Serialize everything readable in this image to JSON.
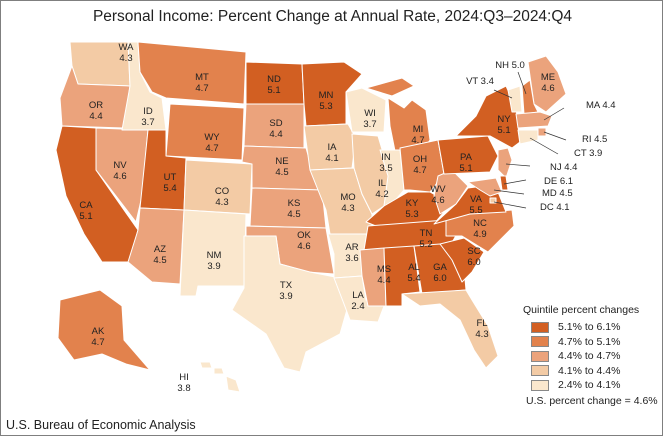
{
  "title": "Personal Income: Percent Change at Annual Rate, 2024:Q3–2024:Q4",
  "source": "U.S. Bureau of Economic Analysis",
  "legend": {
    "title": "Quintile percent changes",
    "items": [
      {
        "label": "5.1% to 6.1%",
        "color": "#d25f22"
      },
      {
        "label": "4.7% to 5.1%",
        "color": "#e2824d"
      },
      {
        "label": "4.4% to 4.7%",
        "color": "#eba37c"
      },
      {
        "label": "4.1% to 4.4%",
        "color": "#f3cba5"
      },
      {
        "label": "2.4% to 4.1%",
        "color": "#fae7cd"
      }
    ],
    "us_change": "U.S. percent change = 4.6%"
  },
  "states": [
    {
      "code": "WA",
      "value": "4.3"
    },
    {
      "code": "OR",
      "value": "4.4"
    },
    {
      "code": "CA",
      "value": "5.1"
    },
    {
      "code": "NV",
      "value": "4.6"
    },
    {
      "code": "ID",
      "value": "3.7"
    },
    {
      "code": "MT",
      "value": "4.7"
    },
    {
      "code": "WY",
      "value": "4.7"
    },
    {
      "code": "UT",
      "value": "5.4"
    },
    {
      "code": "AZ",
      "value": "4.5"
    },
    {
      "code": "CO",
      "value": "4.3"
    },
    {
      "code": "NM",
      "value": "3.9"
    },
    {
      "code": "ND",
      "value": "5.1"
    },
    {
      "code": "SD",
      "value": "4.4"
    },
    {
      "code": "NE",
      "value": "4.5"
    },
    {
      "code": "KS",
      "value": "4.5"
    },
    {
      "code": "OK",
      "value": "4.6"
    },
    {
      "code": "TX",
      "value": "3.9"
    },
    {
      "code": "MN",
      "value": "5.3"
    },
    {
      "code": "IA",
      "value": "4.1"
    },
    {
      "code": "MO",
      "value": "4.3"
    },
    {
      "code": "AR",
      "value": "3.6"
    },
    {
      "code": "LA",
      "value": "2.4"
    },
    {
      "code": "WI",
      "value": "3.7"
    },
    {
      "code": "IL",
      "value": "4.2"
    },
    {
      "code": "MI",
      "value": "4.7"
    },
    {
      "code": "IN",
      "value": "3.5"
    },
    {
      "code": "OH",
      "value": "4.7"
    },
    {
      "code": "KY",
      "value": "5.3"
    },
    {
      "code": "TN",
      "value": "5.2"
    },
    {
      "code": "MS",
      "value": "4.4"
    },
    {
      "code": "AL",
      "value": "5.4"
    },
    {
      "code": "GA",
      "value": "6.0"
    },
    {
      "code": "FL",
      "value": "4.3"
    },
    {
      "code": "SC",
      "value": "6.0"
    },
    {
      "code": "NC",
      "value": "4.9"
    },
    {
      "code": "VA",
      "value": "5.5"
    },
    {
      "code": "WV",
      "value": "4.6"
    },
    {
      "code": "PA",
      "value": "5.1"
    },
    {
      "code": "NY",
      "value": "5.1"
    },
    {
      "code": "ME",
      "value": "4.6"
    },
    {
      "code": "VT",
      "value": "3.4"
    },
    {
      "code": "NH",
      "value": "5.0"
    },
    {
      "code": "MA",
      "value": "4.4"
    },
    {
      "code": "RI",
      "value": "4.5"
    },
    {
      "code": "CT",
      "value": "3.9"
    },
    {
      "code": "NJ",
      "value": "4.4"
    },
    {
      "code": "DE",
      "value": "6.1"
    },
    {
      "code": "MD",
      "value": "4.5"
    },
    {
      "code": "DC",
      "value": "4.1"
    },
    {
      "code": "AK",
      "value": "4.7"
    },
    {
      "code": "HI",
      "value": "3.8"
    }
  ]
}
